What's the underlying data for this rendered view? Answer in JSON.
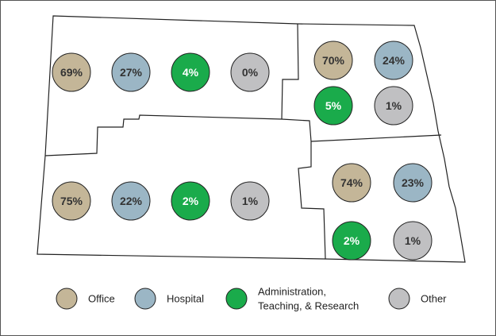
{
  "regions": [
    {
      "values": [
        "69%",
        "27%",
        "4%",
        "0%"
      ]
    },
    {
      "values": [
        "70%",
        "24%",
        "5%",
        "1%"
      ]
    },
    {
      "values": [
        "75%",
        "22%",
        "2%",
        "1%"
      ]
    },
    {
      "values": [
        "74%",
        "23%",
        "2%",
        "1%"
      ]
    }
  ],
  "legend": [
    {
      "lines": [
        "Office"
      ]
    },
    {
      "lines": [
        "Hospital"
      ]
    },
    {
      "lines": [
        "Administration,",
        "Teaching, & Research"
      ]
    },
    {
      "lines": [
        "Other"
      ]
    }
  ]
}
